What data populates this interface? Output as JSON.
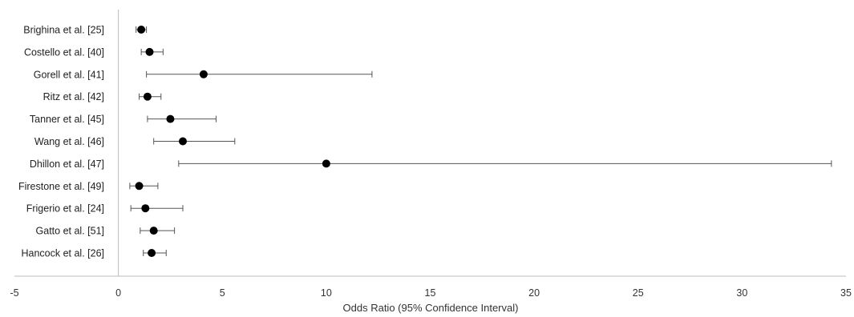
{
  "chart_data": {
    "type": "forest",
    "title": "",
    "xlabel": "Odds Ratio (95% Confidence Interval)",
    "ylabel": "",
    "xlim": [
      -5,
      35
    ],
    "xticks": [
      -5,
      0,
      5,
      10,
      15,
      20,
      25,
      30,
      35
    ],
    "grid": false,
    "legend": "none",
    "colors": {
      "marker": "#000000",
      "line": "#555555",
      "axis": "#bbbbbb"
    },
    "studies": [
      {
        "label": "Brighina et al. [25]",
        "or": 1.1,
        "lower": 0.85,
        "upper": 1.35
      },
      {
        "label": "Costello et al. [40]",
        "or": 1.5,
        "lower": 1.1,
        "upper": 2.15
      },
      {
        "label": "Gorell et al. [41]",
        "or": 4.1,
        "lower": 1.35,
        "upper": 12.2
      },
      {
        "label": "Ritz et al. [42]",
        "or": 1.4,
        "lower": 1.0,
        "upper": 2.05
      },
      {
        "label": "Tanner et al. [45]",
        "or": 2.5,
        "lower": 1.4,
        "upper": 4.7
      },
      {
        "label": "Wang et al. [46]",
        "or": 3.1,
        "lower": 1.7,
        "upper": 5.6
      },
      {
        "label": "Dhillon et al. [47]",
        "or": 10.0,
        "lower": 2.9,
        "upper": 34.3
      },
      {
        "label": "Firestone et al. [49]",
        "or": 1.0,
        "lower": 0.55,
        "upper": 1.9
      },
      {
        "label": "Frigerio et al. [24]",
        "or": 1.3,
        "lower": 0.6,
        "upper": 3.1
      },
      {
        "label": "Gatto et al. [51]",
        "or": 1.7,
        "lower": 1.05,
        "upper": 2.7
      },
      {
        "label": "Hancock et al. [26]",
        "or": 1.6,
        "lower": 1.2,
        "upper": 2.3
      }
    ]
  }
}
